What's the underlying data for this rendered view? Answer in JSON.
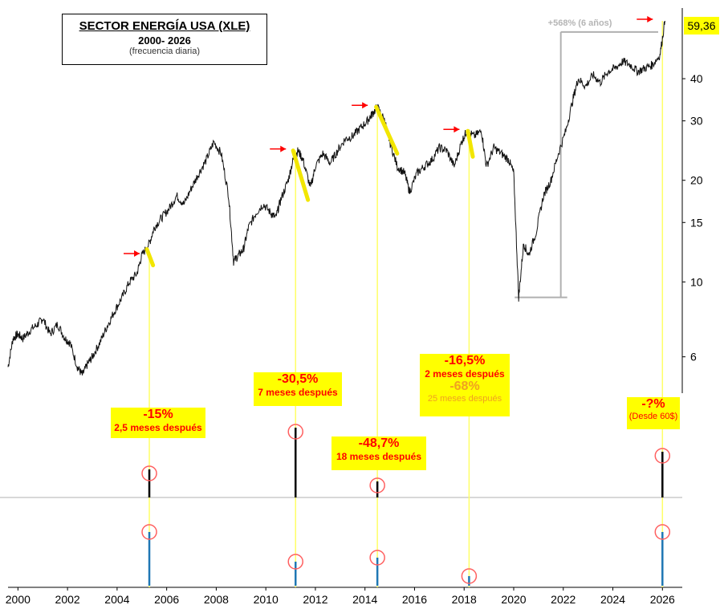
{
  "title": {
    "line1": "SECTOR ENERGÍA USA (XLE)",
    "line2": "2000- 2026",
    "line3": "(frecuencia diaria)"
  },
  "current_price": "59,36",
  "gain_annotation": "+568% (6 años)",
  "callouts": [
    {
      "big": "-15%",
      "small": "2,5 meses después"
    },
    {
      "big": "-30,5%",
      "small": "7 meses después"
    },
    {
      "big": "-48,7%",
      "small": "18 meses después"
    },
    {
      "big": "-16,5%",
      "small": "2 meses después",
      "big2": "-68%",
      "small2": "25 meses después"
    },
    {
      "big": "-?%",
      "small": "(Desde 60$)"
    }
  ],
  "colors": {
    "price_line": "#111111",
    "highlight": "#f2e600",
    "vertical_marker": "#ffff66",
    "arrow": "#ff0000",
    "circle": "#ff6060",
    "indicator_bottom": "#1f77b4",
    "grid_gray": "#b0b0b0"
  },
  "chart_data": {
    "type": "line",
    "scale": "log",
    "x_ticks": [
      "2000",
      "2002",
      "2004",
      "2006",
      "2008",
      "2010",
      "2012",
      "2014",
      "2016",
      "2018",
      "2020",
      "2022",
      "2024",
      "2026"
    ],
    "y_ticks": [
      "6",
      "10",
      "15",
      "20",
      "30",
      "40"
    ],
    "y_tick_values": [
      6,
      10,
      15,
      20,
      30,
      40
    ],
    "ylim": [
      5,
      62
    ],
    "xlim": [
      1999.6,
      2026.8
    ],
    "series": [
      {
        "x": [
          1999.6,
          1999.8,
          2000.0,
          2000.2,
          2000.5,
          2000.8,
          2001.0,
          2001.3,
          2001.6,
          2001.9,
          2002.1,
          2002.4,
          2002.6,
          2002.8,
          2003.0,
          2003.3,
          2003.6,
          2003.9,
          2004.2,
          2004.5,
          2004.8,
          2005.0,
          2005.3,
          2005.5,
          2005.8,
          2006.1,
          2006.4,
          2006.7,
          2007.0,
          2007.3,
          2007.6,
          2007.9,
          2008.2,
          2008.5,
          2008.7,
          2008.9,
          2009.1,
          2009.3,
          2009.6,
          2009.9,
          2010.2,
          2010.4,
          2010.6,
          2010.9,
          2011.1,
          2011.3,
          2011.5,
          2011.8,
          2012.0,
          2012.3,
          2012.6,
          2012.9,
          2013.2,
          2013.5,
          2013.8,
          2014.1,
          2014.3,
          2014.5,
          2014.8,
          2015.0,
          2015.3,
          2015.6,
          2015.8,
          2016.1,
          2016.4,
          2016.7,
          2017.0,
          2017.3,
          2017.6,
          2017.9,
          2018.1,
          2018.4,
          2018.7,
          2018.9,
          2019.2,
          2019.5,
          2019.8,
          2020.0,
          2020.2,
          2020.4,
          2020.6,
          2020.9,
          2021.2,
          2021.5,
          2021.8,
          2022.1,
          2022.4,
          2022.6,
          2022.9,
          2023.2,
          2023.5,
          2023.8,
          2024.1,
          2024.4,
          2024.7,
          2025.0,
          2025.3,
          2025.6,
          2025.9,
          2026.1
        ],
        "y": [
          5.6,
          6.8,
          7.0,
          6.8,
          7.2,
          7.5,
          7.8,
          7.0,
          7.5,
          6.8,
          6.6,
          5.6,
          5.3,
          5.7,
          6.0,
          6.6,
          7.4,
          8.2,
          9.0,
          10.0,
          10.6,
          12.0,
          13.0,
          14.5,
          15.5,
          16.5,
          18.0,
          17.0,
          19.0,
          21.0,
          23.0,
          26.0,
          24.0,
          18.0,
          11.5,
          12.0,
          12.5,
          14.5,
          16.0,
          17.0,
          16.0,
          15.5,
          17.5,
          20.0,
          23.0,
          24.5,
          23.0,
          19.0,
          22.0,
          24.0,
          22.5,
          24.5,
          26.5,
          27.0,
          28.5,
          30.0,
          31.5,
          33.0,
          30.0,
          26.0,
          22.0,
          21.0,
          18.5,
          21.0,
          22.0,
          23.0,
          25.0,
          24.5,
          22.0,
          26.0,
          28.0,
          27.0,
          28.0,
          22.0,
          25.0,
          24.0,
          23.0,
          21.0,
          9.0,
          13.0,
          12.0,
          14.0,
          18.0,
          20.0,
          24.0,
          28.0,
          35.0,
          40.0,
          38.0,
          41.0,
          39.0,
          42.0,
          43.0,
          45.0,
          44.0,
          42.0,
          43.0,
          44.0,
          47.0,
          59.36
        ]
      }
    ],
    "events": [
      {
        "x": 2005.3,
        "peak": 12.0,
        "drop": "-15%"
      },
      {
        "x": 2011.2,
        "peak": 24.5,
        "drop": "-30,5%"
      },
      {
        "x": 2014.5,
        "peak": 33.0,
        "drop": "-48,7%"
      },
      {
        "x": 2018.2,
        "peak": 28.0,
        "drop": "-16,5%"
      },
      {
        "x": 2026.0,
        "peak": 59.36,
        "drop": "-?%"
      }
    ],
    "gain_bracket": {
      "x_from": 2020.3,
      "x_to": 2021.9,
      "y_low": 9.0,
      "y_high": 55.0
    }
  }
}
